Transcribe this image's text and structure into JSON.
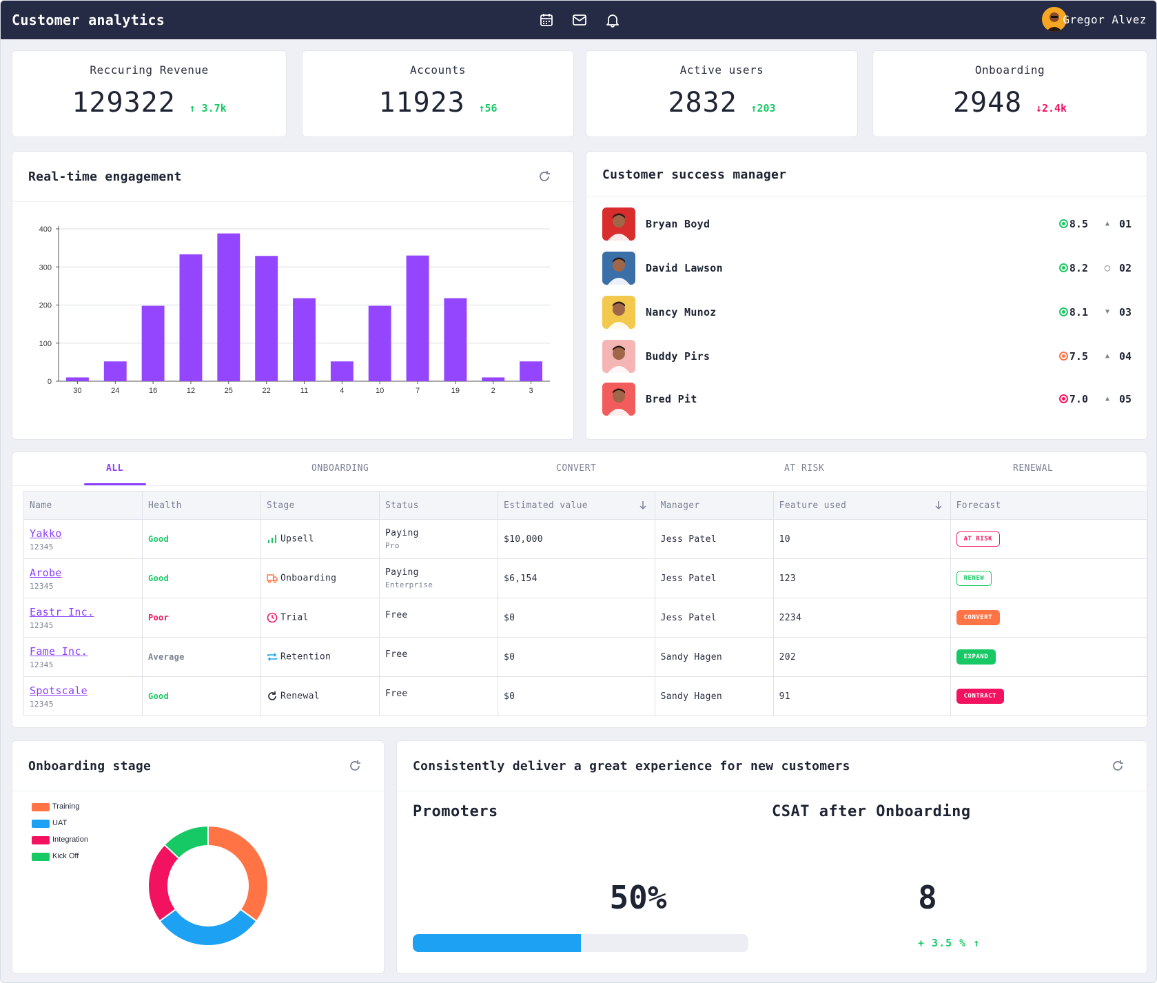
{
  "header": {
    "title": "Customer analytics",
    "user_name": "Gregor Alvez",
    "icons": [
      "calendar-icon",
      "mail-icon",
      "bell-icon"
    ]
  },
  "kpis": [
    {
      "label": "Reccuring Revenue",
      "value": "129322",
      "delta": "3.7k",
      "direction": "up"
    },
    {
      "label": "Accounts",
      "value": "11923",
      "delta": "56",
      "direction": "up"
    },
    {
      "label": "Active users",
      "value": "2832",
      "delta": "203",
      "direction": "up"
    },
    {
      "label": "Onboarding",
      "value": "2948",
      "delta": "2.4k",
      "direction": "down"
    }
  ],
  "engagement": {
    "title": "Real-time engagement"
  },
  "chart_data": [
    {
      "type": "bar",
      "categories": [
        "30",
        "24",
        "16",
        "12",
        "25",
        "22",
        "11",
        "4",
        "10",
        "7",
        "19",
        "2",
        "3"
      ],
      "values": [
        10,
        52,
        198,
        333,
        388,
        329,
        218,
        52,
        198,
        330,
        218,
        10,
        52
      ],
      "ylim": [
        0,
        400
      ],
      "yticks": [
        0,
        100,
        200,
        300,
        400
      ],
      "color": "#9446ff",
      "grid": true
    },
    {
      "type": "pie",
      "donut": true,
      "categories": [
        "Training",
        "UAT",
        "Integration",
        "Kick Off"
      ],
      "values": [
        35,
        30,
        22,
        13
      ],
      "colors": [
        "#ff7344",
        "#1da1f2",
        "#f31260",
        "#17c964"
      ],
      "legend": "left"
    }
  ],
  "csm": {
    "title": "Customer success manager",
    "managers": [
      {
        "name": "Bryan Boyd",
        "score": "8.5",
        "score_color": "#17c964",
        "rank": "01",
        "trend": "up",
        "avatar_bg": "#d92d2d"
      },
      {
        "name": "David Lawson",
        "score": "8.2",
        "score_color": "#17c964",
        "rank": "02",
        "trend": "flat",
        "avatar_bg": "#3a6fa8"
      },
      {
        "name": "Nancy Munoz",
        "score": "8.1",
        "score_color": "#17c964",
        "rank": "03",
        "trend": "down",
        "avatar_bg": "#f2c94c"
      },
      {
        "name": "Buddy Pirs",
        "score": "7.5",
        "score_color": "#ff7344",
        "rank": "04",
        "trend": "up",
        "avatar_bg": "#f5b5b5"
      },
      {
        "name": "Bred Pit",
        "score": "7.0",
        "score_color": "#f31260",
        "rank": "05",
        "trend": "up",
        "avatar_bg": "#f25c5c"
      }
    ]
  },
  "tabs": [
    "ALL",
    "ONBOARDING",
    "CONVERT",
    "AT RISK",
    "RENEWAL"
  ],
  "table": {
    "columns": [
      "Name",
      "Health",
      "Stage",
      "Status",
      "Estimated value",
      "Manager",
      "Feature used",
      "Forecast"
    ],
    "rows": [
      {
        "name": "Yakko",
        "id": "12345",
        "health": "Good",
        "health_color": "#17c964",
        "stage": "Upsell",
        "stage_icon": "bar-chart-icon",
        "status": "Paying",
        "status_sub": "Pro",
        "value": "$10,000",
        "manager": "Jess Patel",
        "features": "10",
        "forecast": "AT RISK",
        "forecast_style": "outline-red"
      },
      {
        "name": "Arobe",
        "id": "12345",
        "health": "Good",
        "health_color": "#17c964",
        "stage": "Onboarding",
        "stage_icon": "truck-icon",
        "status": "Paying",
        "status_sub": "Enterprise",
        "value": "$6,154",
        "manager": "Jess Patel",
        "features": "123",
        "forecast": "RENEW",
        "forecast_style": "outline-green"
      },
      {
        "name": "Eastr Inc.",
        "id": "12345",
        "health": "Poor",
        "health_color": "#f31260",
        "stage": "Trial",
        "stage_icon": "clock-icon",
        "status": "Free",
        "status_sub": "",
        "value": "$0",
        "manager": "Jess Patel",
        "features": "2234",
        "forecast": "CONVERT",
        "forecast_style": "solid-orange"
      },
      {
        "name": "Fame Inc.",
        "id": "12345",
        "health": "Average",
        "health_color": "#7a8194",
        "stage": "Retention",
        "stage_icon": "repeat-icon",
        "status": "Free",
        "status_sub": "",
        "value": "$0",
        "manager": "Sandy Hagen",
        "features": "202",
        "forecast": "EXPAND",
        "forecast_style": "solid-green"
      },
      {
        "name": "Spotscale",
        "id": "12345",
        "health": "Good",
        "health_color": "#17c964",
        "stage": "Renewal",
        "stage_icon": "refresh-icon",
        "status": "Free",
        "status_sub": "",
        "value": "$0",
        "manager": "Sandy Hagen",
        "features": "91",
        "forecast": "CONTRACT",
        "forecast_style": "solid-red"
      }
    ]
  },
  "onboarding": {
    "title": "Onboarding stage"
  },
  "experience": {
    "title": "Consistently deliver a great experience for new customers",
    "promoters_label": "Promoters",
    "promoters_value": "50%",
    "promoters_fraction": 0.5,
    "csat_label": "CSAT after Onboarding",
    "csat_value": "8",
    "csat_delta": "+ 3.5 %"
  },
  "colors": {
    "accent": "#8b3dff",
    "header_bg": "#252b45",
    "success": "#17c964",
    "danger": "#f31260",
    "warning": "#ff7344",
    "info": "#1da1f2"
  }
}
